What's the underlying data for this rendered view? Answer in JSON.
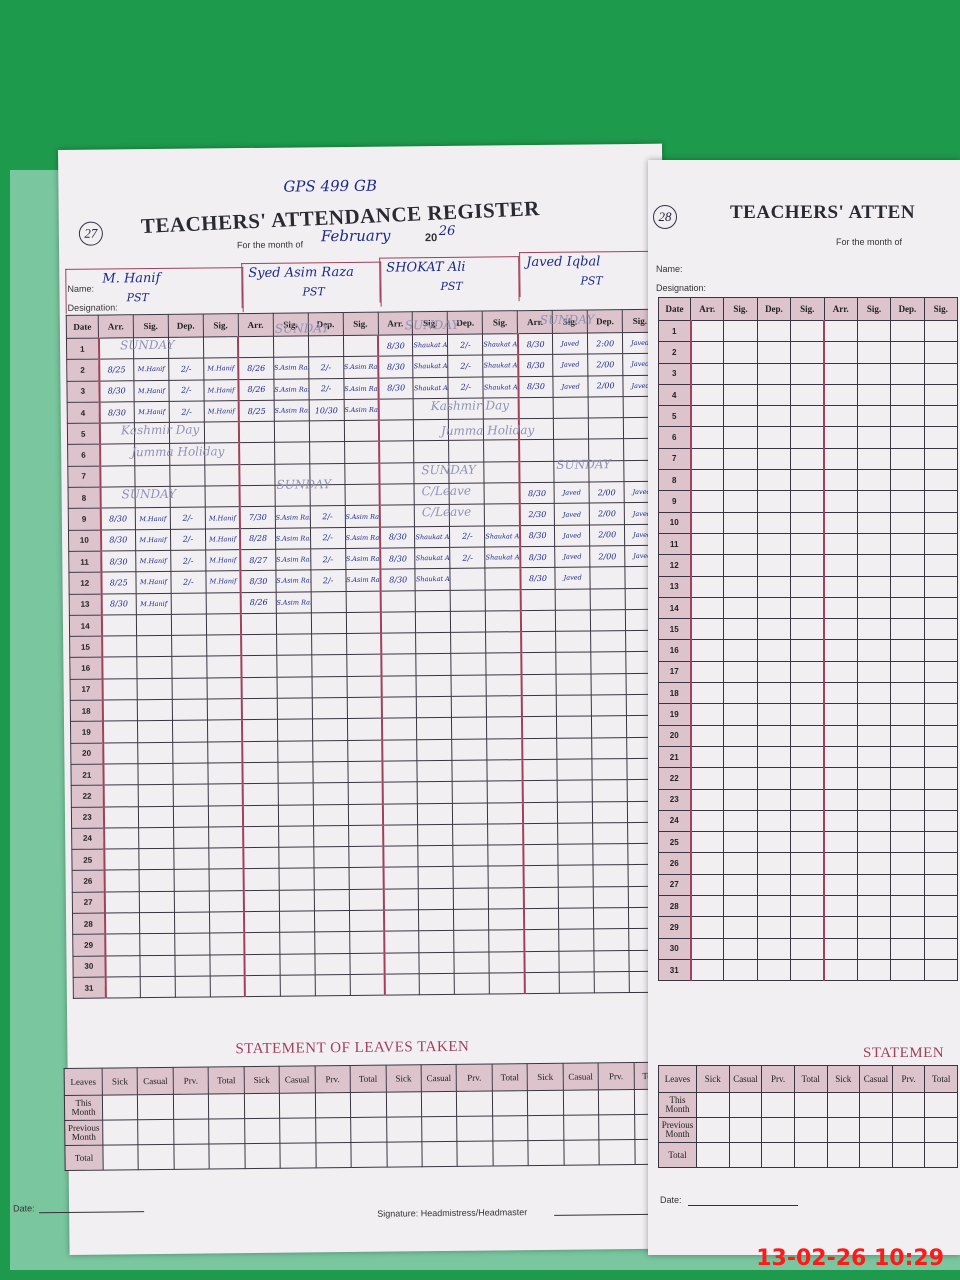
{
  "left_page": {
    "page_number": "27",
    "school_code": "GPS 499 GB",
    "title": "TEACHERS' ATTENDANCE REGISTER",
    "month_label": "For the month of",
    "month": "February",
    "year_prefix": "20",
    "year_suffix": "26",
    "name_label": "Name:",
    "designation_label": "Designation:",
    "date_header": "Date",
    "col_headers": [
      "Arr.",
      "Sig.",
      "Dep.",
      "Sig."
    ],
    "teachers": [
      {
        "name": "M. Hanif",
        "designation": "PST",
        "entries": {
          "2": [
            "8/25",
            "M.Hanif",
            "2/-",
            "M.Hanif"
          ],
          "3": [
            "8/30",
            "M.Hanif",
            "2/-",
            "M.Hanif"
          ],
          "4": [
            "8/30",
            "M.Hanif",
            "2/-",
            "M.Hanif"
          ],
          "9": [
            "8/30",
            "M.Hanif",
            "2/-",
            "M.Hanif"
          ],
          "10": [
            "8/30",
            "M.Hanif",
            "2/-",
            "M.Hanif"
          ],
          "11": [
            "8/30",
            "M.Hanif",
            "2/-",
            "M.Hanif"
          ],
          "12": [
            "8/25",
            "M.Hanif",
            "2/-",
            "M.Hanif"
          ],
          "13": [
            "8/30",
            "M.Hanif",
            "",
            ""
          ]
        }
      },
      {
        "name": "Syed Asim Raza",
        "designation": "PST",
        "entries": {
          "2": [
            "8/26",
            "S.Asim Raza",
            "2/-",
            "S.Asim Raza"
          ],
          "3": [
            "8/26",
            "S.Asim Raza",
            "2/-",
            "S.Asim Raza"
          ],
          "4": [
            "8/25",
            "S.Asim Raza",
            "10/30",
            "S.Asim Raza"
          ],
          "9": [
            "7/30",
            "S.Asim Raza",
            "2/-",
            "S.Asim Raza"
          ],
          "10": [
            "8/28",
            "S.Asim Raza",
            "2/-",
            "S.Asim Raza"
          ],
          "11": [
            "8/27",
            "S.Asim Raza",
            "2/-",
            "S.Asim Raza"
          ],
          "12": [
            "8/30",
            "S.Asim Raza",
            "2/-",
            "S.Asim Raza"
          ],
          "13": [
            "8/26",
            "S.Asim Raza",
            "",
            ""
          ]
        }
      },
      {
        "name": "SHOKAT Ali",
        "designation": "PST",
        "entries": {
          "1": [
            "8/30",
            "Shaukat Ali",
            "2/-",
            "Shaukat Ali"
          ],
          "2": [
            "8/30",
            "Shaukat Ali",
            "2/-",
            "Shaukat Ali"
          ],
          "3": [
            "8/30",
            "Shaukat Ali",
            "2/-",
            "Shaukat Ali"
          ],
          "10": [
            "8/30",
            "Shaukat Ali",
            "2/-",
            "Shaukat Ali"
          ],
          "11": [
            "8/30",
            "Shaukat Ali",
            "2/-",
            "Shaukat Ali"
          ],
          "12": [
            "8/30",
            "Shaukat Ali",
            "",
            ""
          ]
        }
      },
      {
        "name": "Javed Iqbal",
        "designation": "PST",
        "entries": {
          "1": [
            "8/30",
            "Javed",
            "2:00",
            "Javed"
          ],
          "2": [
            "8/30",
            "Javed",
            "2/00",
            "Javed"
          ],
          "3": [
            "8/30",
            "Javed",
            "2/00",
            "Javed"
          ],
          "8": [
            "8/30",
            "Javed",
            "2/00",
            "Javed"
          ],
          "9": [
            "2/30",
            "Javed",
            "2/00",
            "Javed"
          ],
          "10": [
            "8/30",
            "Javed",
            "2/00",
            "Javed"
          ],
          "11": [
            "8/30",
            "Javed",
            "2/00",
            "Javed"
          ],
          "12": [
            "8/30",
            "Javed",
            "",
            ""
          ]
        }
      }
    ],
    "notes": {
      "sunday": "SUNDAY",
      "kashmir_day": "Kashmir Day",
      "holiday": "Jumma Holiday",
      "casual_leave": "C/Leave"
    },
    "leaves_title": "STATEMENT OF LEAVES TAKEN",
    "leaves_headers": [
      "Sick",
      "Casual",
      "Prv.",
      "Total"
    ],
    "leaves_rows": [
      "Leaves",
      "This Month",
      "Previous Month",
      "Total"
    ],
    "date_footer": "Date:",
    "signature_footer": "Signature: Headmistress/Headmaster"
  },
  "right_page": {
    "page_number": "28",
    "title": "TEACHERS' ATTEN",
    "month_label": "For the month of",
    "name_label": "Name:",
    "designation_label": "Designation:",
    "leaves_title": "STATEMEN",
    "date_footer": "Date:"
  },
  "timestamp": "13-02-26 10:29"
}
